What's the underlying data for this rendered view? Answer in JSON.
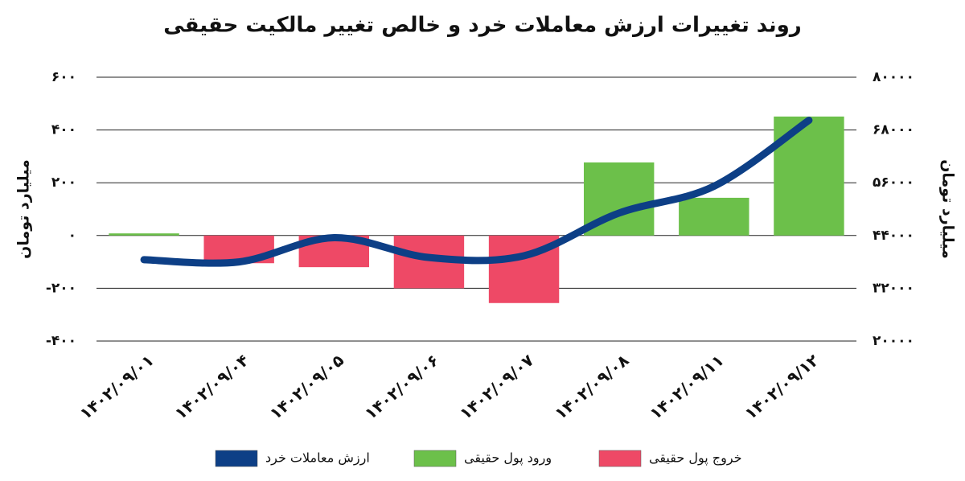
{
  "chart_data": {
    "type": "bar",
    "title": "روند تغییرات ارزش معاملات خرد و خالص تغییر مالکیت حقیقی",
    "y_label": "میلیارد تومان",
    "y2_label": "میلیارد تومان",
    "categories": [
      "۱۴۰۲/۰۹/۰۱",
      "۱۴۰۲/۰۹/۰۴",
      "۱۴۰۲/۰۹/۰۵",
      "۱۴۰۲/۰۹/۰۶",
      "۱۴۰۲/۰۹/۰۷",
      "۱۴۰۲/۰۹/۰۸",
      "۱۴۰۲/۰۹/۱۱",
      "۱۴۰۲/۰۹/۱۲"
    ],
    "series": [
      {
        "name": "ارزش معاملات خرد",
        "type": "line",
        "axis": "y2",
        "color": "#0d3f86",
        "values": [
          38500,
          38000,
          43500,
          39000,
          39400,
          49100,
          55200,
          70200
        ]
      },
      {
        "name": "ورود پول حقیقی",
        "type": "bar",
        "color": "#6cc04a",
        "values": [
          8,
          null,
          null,
          null,
          null,
          277,
          143,
          451
        ]
      },
      {
        "name": "خروج پول حقیقی",
        "type": "bar",
        "color": "#ee4966",
        "values": [
          null,
          -105,
          -120,
          -200,
          -256,
          null,
          null,
          null
        ]
      }
    ],
    "ylim": [
      -400,
      600
    ],
    "yticks": [
      {
        "value": -400,
        "label": "-۴۰۰"
      },
      {
        "value": -200,
        "label": "-۲۰۰"
      },
      {
        "value": 0,
        "label": "۰"
      },
      {
        "value": 200,
        "label": "۲۰۰"
      },
      {
        "value": 400,
        "label": "۴۰۰"
      },
      {
        "value": 600,
        "label": "۶۰۰"
      }
    ],
    "y2lim": [
      20000,
      80000
    ],
    "y2ticks": [
      {
        "value": 20000,
        "label": "۲۰۰۰۰"
      },
      {
        "value": 32000,
        "label": "۳۲۰۰۰"
      },
      {
        "value": 44000,
        "label": "۴۴۰۰۰"
      },
      {
        "value": 56000,
        "label": "۵۶۰۰۰"
      },
      {
        "value": 68000,
        "label": "۶۸۰۰۰"
      },
      {
        "value": 80000,
        "label": "۸۰۰۰۰"
      }
    ],
    "grid": true
  }
}
